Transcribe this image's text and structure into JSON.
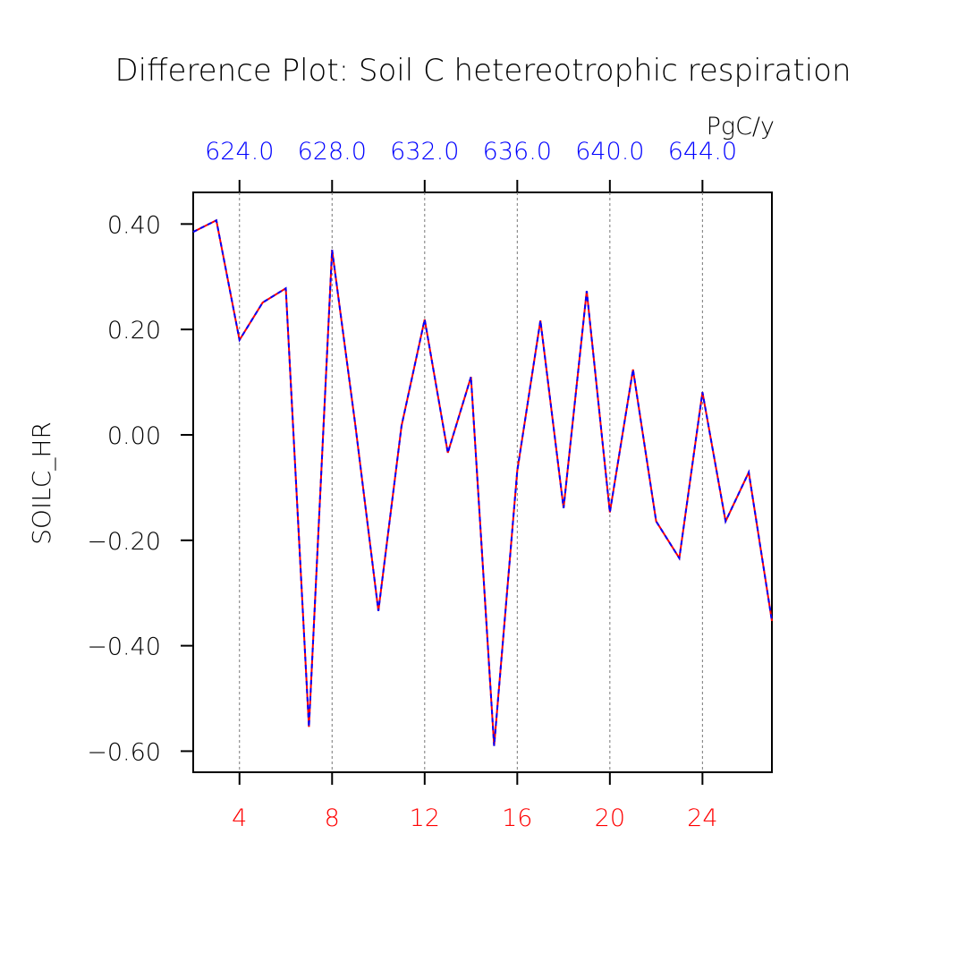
{
  "chart_data": {
    "type": "line",
    "title": "Difference Plot: Soil C hetereotrophic respiration",
    "units": "PgC/y",
    "ylabel": "SOILC_HR",
    "x": [
      2,
      3,
      4,
      5,
      6,
      7,
      8,
      9,
      10,
      11,
      12,
      13,
      14,
      15,
      16,
      17,
      18,
      19,
      20,
      21,
      22,
      23,
      24,
      25,
      26,
      27
    ],
    "series": [
      {
        "color": "#ff0000",
        "dash": false,
        "values": [
          0.385,
          0.407,
          0.18,
          0.251,
          0.278,
          -0.554,
          0.351,
          0.02,
          -0.334,
          0.017,
          0.219,
          -0.034,
          0.11,
          -0.59,
          -0.068,
          0.217,
          -0.139,
          0.273,
          -0.147,
          0.124,
          -0.164,
          -0.234,
          0.081,
          -0.164,
          -0.071,
          -0.353
        ]
      },
      {
        "color": "#0000ff",
        "dash": true,
        "values": [
          0.385,
          0.407,
          0.18,
          0.251,
          0.278,
          -0.554,
          0.351,
          0.02,
          -0.334,
          0.017,
          0.219,
          -0.034,
          0.11,
          -0.59,
          -0.068,
          0.217,
          -0.139,
          0.273,
          -0.147,
          0.124,
          -0.164,
          -0.234,
          0.081,
          -0.164,
          -0.071,
          -0.353
        ]
      }
    ],
    "xlim": [
      2,
      27
    ],
    "xticks": [
      4,
      8,
      12,
      16,
      20,
      24
    ],
    "xtick_color": "#ff0000",
    "x2lim": [
      622,
      647
    ],
    "x2ticks": [
      {
        "value": 624,
        "label": "624.0"
      },
      {
        "value": 628,
        "label": "628.0"
      },
      {
        "value": 632,
        "label": "632.0"
      },
      {
        "value": 636,
        "label": "636.0"
      },
      {
        "value": 640,
        "label": "640.0"
      },
      {
        "value": 644,
        "label": "644.0"
      }
    ],
    "x2tick_color": "#0000ff",
    "ylim": [
      -0.64,
      0.46
    ],
    "yticks": [
      {
        "value": 0.4,
        "label": "0.40"
      },
      {
        "value": 0.2,
        "label": "0.20"
      },
      {
        "value": 0,
        "label": "0.00"
      },
      {
        "value": -0.2,
        "label": "−0.20"
      },
      {
        "value": -0.4,
        "label": "−0.40"
      },
      {
        "value": -0.6,
        "label": "−0.60"
      }
    ],
    "grid": "x"
  }
}
